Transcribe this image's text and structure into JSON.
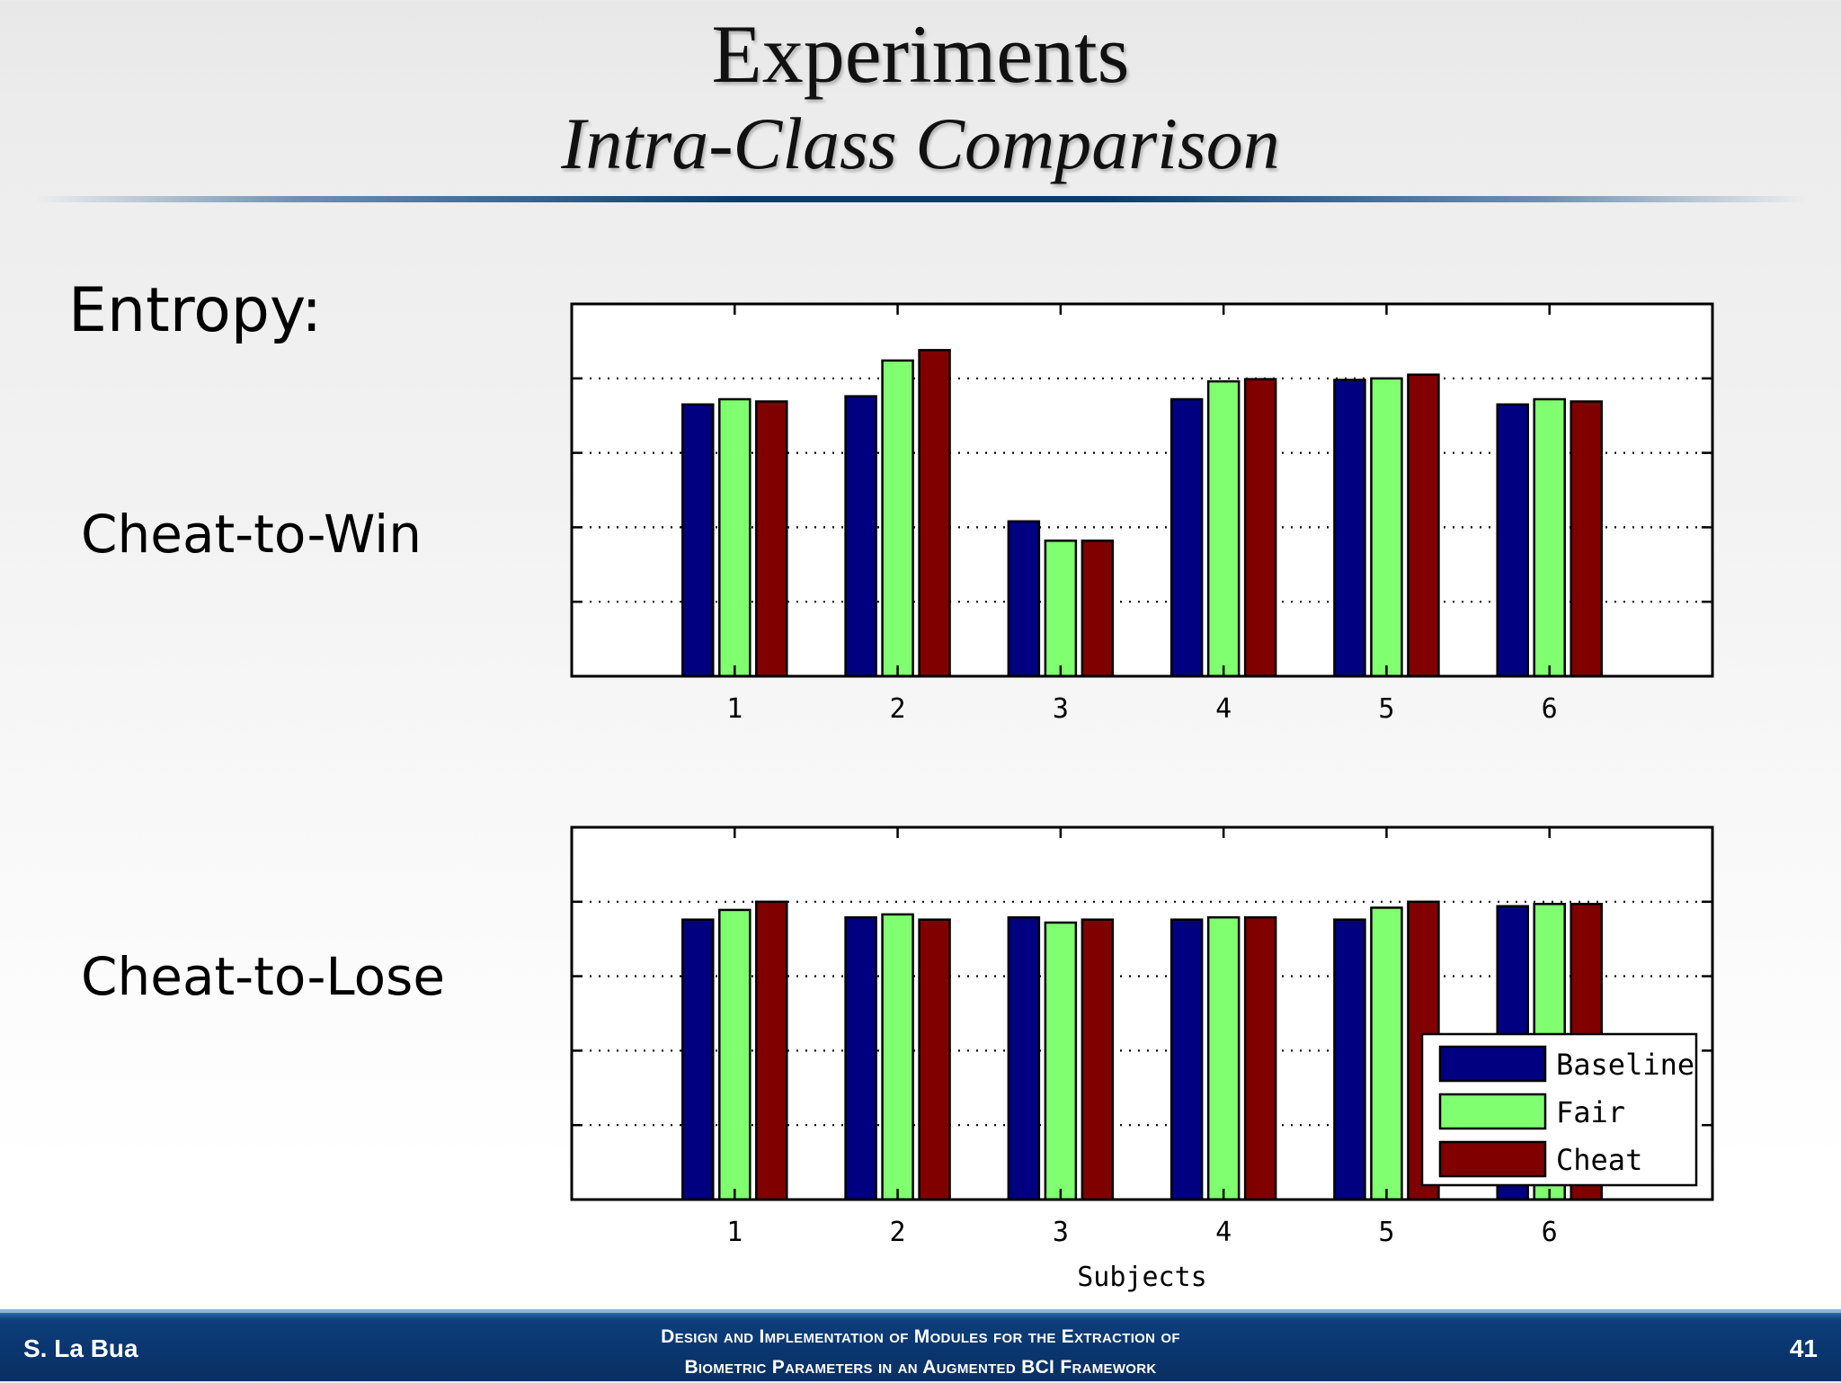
{
  "slide": {
    "title": "Experiments",
    "subtitle": "Intra-Class Comparison",
    "section_label": "Entropy:",
    "row_labels": [
      "Cheat-to-Win",
      "Cheat-to-Lose"
    ]
  },
  "footer": {
    "author": "S. La Bua",
    "title_line1": "Design and Implementation of Modules for the Extraction of",
    "title_line2": "Biometric Parameters in an Augmented BCI Framework",
    "page": "41"
  },
  "colors": {
    "Baseline": "#000080",
    "Fair": "#80ff70",
    "Cheat": "#800000"
  },
  "chart_data": [
    {
      "type": "bar",
      "name": "Cheat-to-Win",
      "categories": [
        "1",
        "2",
        "3",
        "4",
        "5",
        "6"
      ],
      "series": [
        {
          "name": "Baseline",
          "values": [
            3.65,
            3.76,
            2.08,
            3.72,
            3.98,
            3.65
          ]
        },
        {
          "name": "Fair",
          "values": [
            3.72,
            4.24,
            1.82,
            3.96,
            4.0,
            3.72
          ]
        },
        {
          "name": "Cheat",
          "values": [
            3.69,
            4.38,
            1.82,
            3.99,
            4.05,
            3.69
          ]
        }
      ],
      "ylim": [
        0,
        5
      ],
      "xlim": [
        0,
        7
      ],
      "grid": true,
      "xlabel": ""
    },
    {
      "type": "bar",
      "name": "Cheat-to-Lose",
      "categories": [
        "1",
        "2",
        "3",
        "4",
        "5",
        "6"
      ],
      "series": [
        {
          "name": "Baseline",
          "values": [
            3.76,
            3.79,
            3.79,
            3.76,
            3.76,
            3.94
          ]
        },
        {
          "name": "Fair",
          "values": [
            3.89,
            3.83,
            3.72,
            3.79,
            3.92,
            3.97
          ]
        },
        {
          "name": "Cheat",
          "values": [
            4.0,
            3.76,
            3.76,
            3.79,
            4.0,
            3.97
          ]
        }
      ],
      "ylim": [
        0,
        5
      ],
      "xlim": [
        0,
        7
      ],
      "grid": true,
      "xlabel": "Subjects",
      "legend": {
        "position": "bottom-right",
        "entries": [
          "Baseline",
          "Fair",
          "Cheat"
        ]
      }
    }
  ]
}
